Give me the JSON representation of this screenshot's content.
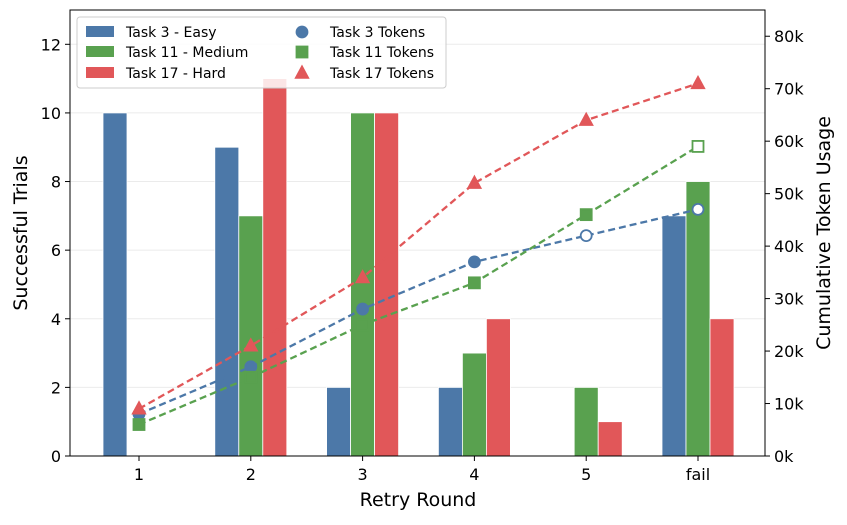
{
  "chart_data": {
    "type": "bar+line",
    "categories": [
      "1",
      "2",
      "3",
      "4",
      "5",
      "fail"
    ],
    "xlabel": "Retry Round",
    "ylabel_left": "Successful Trials",
    "ylabel_right": "Cumulative Token Usage",
    "ylim_left": [
      0,
      13
    ],
    "ylim_right": [
      0,
      85000
    ],
    "yticks_left": [
      "0",
      "2",
      "4",
      "6",
      "8",
      "10",
      "12"
    ],
    "yticks_right": [
      "0k",
      "10k",
      "20k",
      "30k",
      "40k",
      "50k",
      "60k",
      "70k",
      "80k"
    ],
    "grid": "horizontal light",
    "legend_position": "top-left",
    "bar_series": [
      {
        "name": "Task 3 - Easy",
        "color": "#4c78a8",
        "values": [
          10,
          9,
          2,
          2,
          0,
          7
        ]
      },
      {
        "name": "Task 11 - Medium",
        "color": "#59a14f",
        "values": [
          0,
          7,
          10,
          3,
          2,
          8
        ]
      },
      {
        "name": "Task 17 - Hard",
        "color": "#e15759",
        "values": [
          0,
          11,
          10,
          4,
          1,
          4
        ]
      }
    ],
    "line_series": [
      {
        "name": "Task 3 Tokens",
        "color": "#4c78a8",
        "marker": "circle",
        "values": [
          8000,
          17000,
          28000,
          37000,
          42000,
          47000
        ],
        "hollow": [
          false,
          false,
          false,
          false,
          true,
          true
        ]
      },
      {
        "name": "Task 11 Tokens",
        "color": "#59a14f",
        "marker": "square",
        "values": [
          6000,
          15000,
          25000,
          33000,
          46000,
          59000
        ],
        "hollow": [
          false,
          false,
          false,
          false,
          false,
          true
        ]
      },
      {
        "name": "Task 17 Tokens",
        "color": "#e15759",
        "marker": "triangle",
        "values": [
          9000,
          21000,
          34000,
          52000,
          64000,
          71000
        ],
        "hollow": [
          false,
          false,
          false,
          false,
          false,
          false
        ]
      }
    ]
  }
}
